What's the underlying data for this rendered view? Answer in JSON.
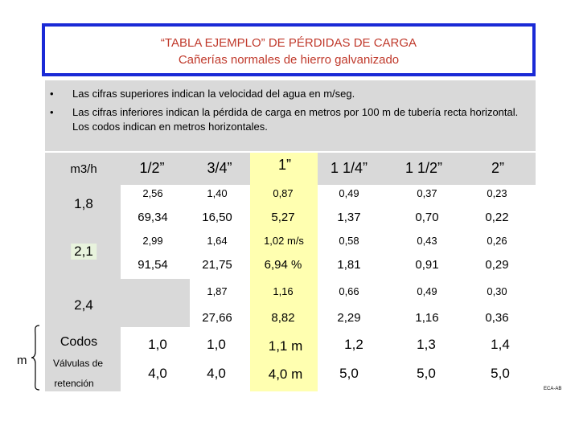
{
  "header": {
    "title": "“TABLA EJEMPLO” DE PÉRDIDAS DE CARGA",
    "subtitle": "Cañerías normales de hierro galvanizado"
  },
  "notes": [
    {
      "bullet": "•",
      "text": "Las cifras superiores indican la velocidad del agua en m/seg."
    },
    {
      "bullet": "•",
      "text": "Las cifras inferiores indican la pérdida de carga en metros por 100 m de tubería recta horizontal. Los codos indican en metros horizontales."
    }
  ],
  "table": {
    "unit_label": "m3/h",
    "pipe_sizes": [
      "1/2”",
      "3/4”",
      "1”",
      "1 1/4”",
      "1 1/2”",
      "2”"
    ],
    "flow_rows": [
      {
        "flow": "1,8",
        "velocity": [
          "2,56",
          "1,40",
          "0,87",
          "0,49",
          "0,37",
          "0,23"
        ],
        "loss": [
          "69,34",
          "16,50",
          "5,27",
          "1,37",
          "0,70",
          "0,22"
        ]
      },
      {
        "flow": "2,1",
        "velocity": [
          "2,99",
          "1,64",
          "1,02 m/s",
          "0,58",
          "0,43",
          "0,26"
        ],
        "loss": [
          "91,54",
          "21,75",
          "6,94 %",
          "1,81",
          "0,91",
          "0,29"
        ]
      },
      {
        "flow": "2,4",
        "velocity": [
          "",
          "1,87",
          "1,16",
          "0,66",
          "0,49",
          "0,30"
        ],
        "loss": [
          "",
          "27,66",
          "8,82",
          "2,29",
          "1,16",
          "0,36"
        ]
      }
    ],
    "fittings": [
      {
        "label": "Codos",
        "values": [
          "1,0",
          "1,0",
          "1,1 m",
          "1,2",
          "1,3",
          "1,4"
        ]
      },
      {
        "label_line1": "Válvulas de",
        "label_line2": "retención",
        "values": [
          "4,0",
          "4,0",
          "4,0 m",
          "5,0",
          "5,0",
          "5,0"
        ]
      }
    ],
    "fittings_unit": "m"
  },
  "credit": "ECA-AB",
  "colors": {
    "border_blue": "#1a2ad6",
    "title_red": "#c0392b",
    "highlight_yellow": "#ffffb0",
    "shade_grey": "#d9d9d9",
    "label_green": "#6aa84f"
  }
}
